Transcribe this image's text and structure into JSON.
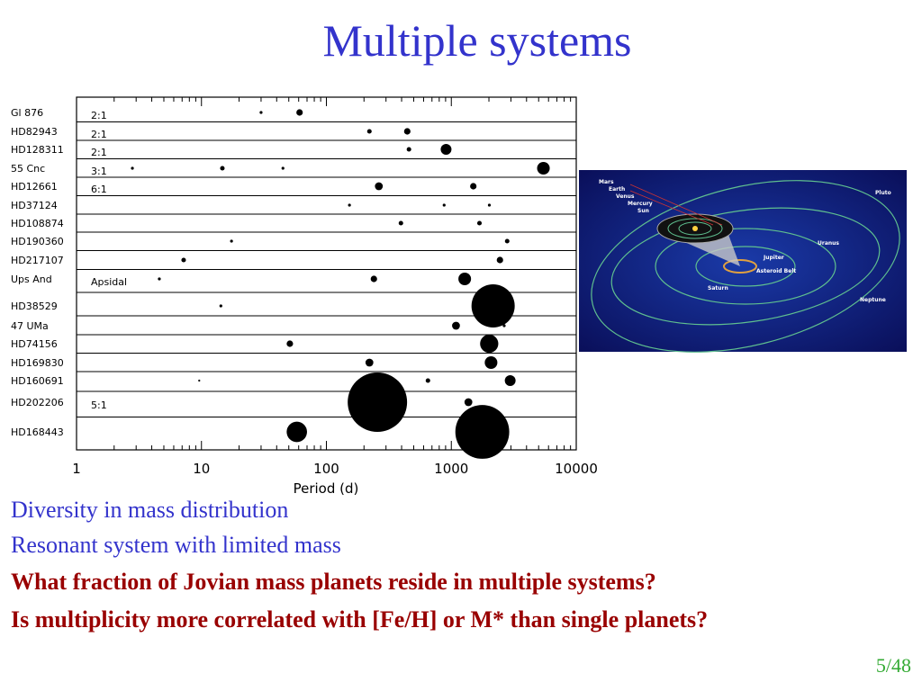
{
  "title": "Multiple systems",
  "chart_data": {
    "type": "scatter",
    "xlabel": "Period (d)",
    "log_x": true,
    "xlim": [
      1,
      10000
    ],
    "xticks": [
      1,
      10,
      100,
      1000,
      10000
    ],
    "color": "#000000",
    "rows": [
      {
        "name": "Gl 876",
        "note": "2:1",
        "periods": [
          30,
          61
        ],
        "masses": [
          0.04,
          0.2
        ]
      },
      {
        "name": "HD82943",
        "note": "2:1",
        "periods": [
          221,
          444
        ],
        "masses": [
          0.1,
          0.2
        ]
      },
      {
        "name": "HD128311",
        "note": "2:1",
        "periods": [
          458,
          908
        ],
        "masses": [
          0.1,
          0.56
        ]
      },
      {
        "name": "55 Cnc",
        "note": "3:1",
        "periods": [
          2.8,
          14.7,
          44.9,
          5460
        ],
        "masses": [
          0.04,
          0.1,
          0.04,
          0.77
        ]
      },
      {
        "name": "HD12661",
        "note": "6:1",
        "periods": [
          263,
          1500
        ],
        "masses": [
          0.3,
          0.2
        ]
      },
      {
        "name": "HD37124",
        "periods": [
          153,
          876,
          2015
        ],
        "masses": [
          0.04,
          0.04,
          0.04
        ]
      },
      {
        "name": "HD108874",
        "periods": [
          395,
          1680
        ],
        "masses": [
          0.1,
          0.1
        ]
      },
      {
        "name": "HD190360",
        "periods": [
          17.4,
          2800
        ],
        "masses": [
          0.04,
          0.1
        ]
      },
      {
        "name": "HD217107",
        "periods": [
          7.2,
          2450
        ],
        "masses": [
          0.1,
          0.2
        ]
      },
      {
        "name": "Ups And",
        "note": "Apsidal",
        "periods": [
          4.6,
          240,
          1280
        ],
        "masses": [
          0.04,
          0.2,
          0.77
        ]
      },
      {
        "name": "HD38529",
        "periods": [
          14.3,
          2160
        ],
        "masses": [
          0.04,
          9
        ]
      },
      {
        "name": "47 UMa",
        "periods": [
          1090,
          2650
        ],
        "masses": [
          0.3,
          0.04
        ]
      },
      {
        "name": "HD74156",
        "periods": [
          51,
          2010
        ],
        "masses": [
          0.2,
          1.6
        ]
      },
      {
        "name": "HD169830",
        "periods": [
          221,
          2080
        ],
        "masses": [
          0.3,
          0.77
        ]
      },
      {
        "name": "HD160691",
        "periods": [
          9.6,
          650,
          2960
        ],
        "masses": [
          0.02,
          0.1,
          0.56
        ]
      },
      {
        "name": "HD202206",
        "note": "5:1",
        "periods": [
          256,
          1370
        ],
        "masses": [
          17,
          0.3
        ]
      },
      {
        "name": "HD168443",
        "periods": [
          58,
          1770
        ],
        "masses": [
          2,
          14
        ]
      }
    ]
  },
  "image": {
    "labels": [
      "Mars",
      "Earth",
      "Venus",
      "Mercury",
      "Sun",
      "Pluto",
      "Uranus",
      "Jupiter",
      "Asteroid Belt",
      "Saturn",
      "Neptune"
    ]
  },
  "bullets": [
    "Diversity in mass distribution",
    "Resonant system with limited mass",
    "What fraction of Jovian mass planets reside in multiple systems?",
    "Is multiplicity more correlated with [Fe/H] or M* than single planets?"
  ],
  "page_number": "5/48"
}
